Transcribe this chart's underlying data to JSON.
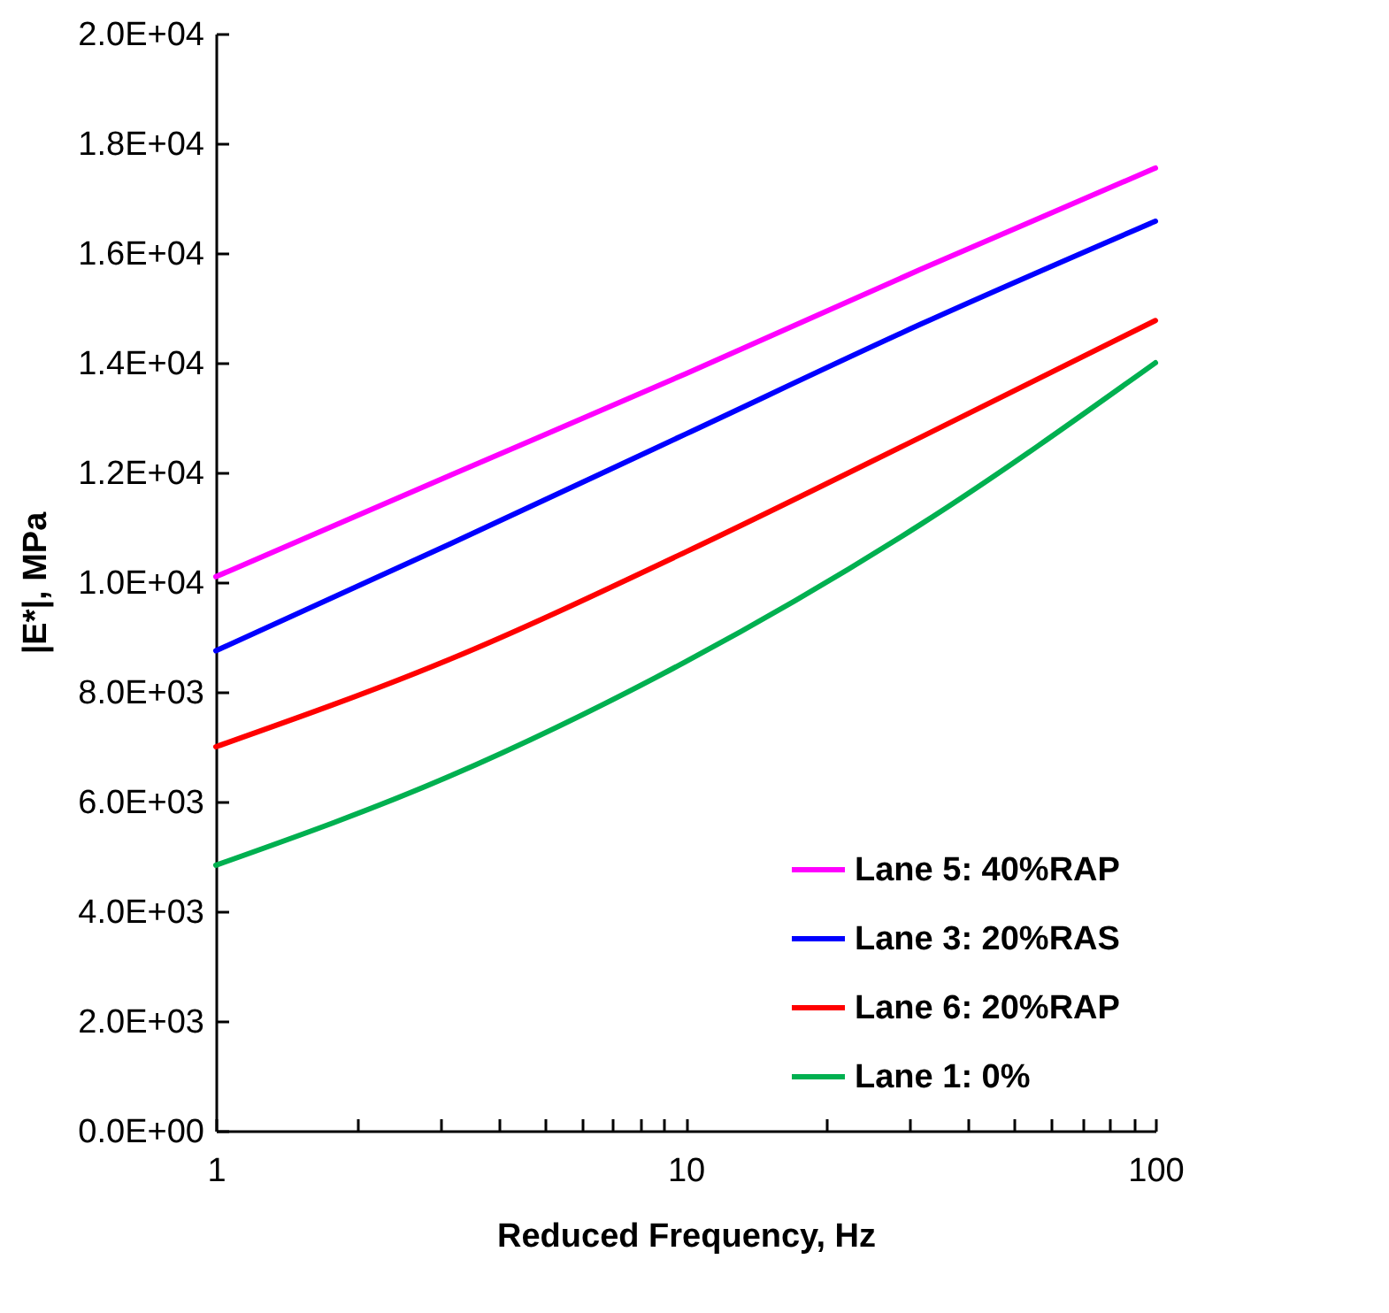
{
  "chart_data": {
    "type": "line",
    "xlabel": "Reduced Frequency, Hz",
    "ylabel": "|E*|, MPa",
    "log": "x",
    "x": [
      1,
      3.16,
      10,
      31.6,
      100
    ],
    "series": [
      {
        "name": "Lane 5: 40%RAP",
        "color": "#ff00ff",
        "values": [
          10100,
          11950,
          13800,
          15700,
          17550
        ]
      },
      {
        "name": "Lane 3: 20%RAS",
        "color": "#0000ff",
        "values": [
          8750,
          10700,
          12700,
          14700,
          16580
        ]
      },
      {
        "name": "Lane 6: 20%RAP",
        "color": "#ff0000",
        "values": [
          7000,
          8600,
          10550,
          12640,
          14770
        ]
      },
      {
        "name": "Lane 1: 0%",
        "color": "#00b050",
        "values": [
          4840,
          6470,
          8550,
          11050,
          14000
        ]
      }
    ],
    "xlim": [
      1,
      100
    ],
    "xticks": [
      1,
      {
        "value": 2,
        "label": null
      },
      {
        "value": 3,
        "label": null
      },
      {
        "value": 4,
        "label": null
      },
      {
        "value": 5,
        "label": null
      },
      {
        "value": 6,
        "label": null
      },
      {
        "value": 7,
        "label": null
      },
      {
        "value": 8,
        "label": null
      },
      {
        "value": 9,
        "label": null
      },
      10,
      {
        "value": 20,
        "label": null
      },
      {
        "value": 30,
        "label": null
      },
      {
        "value": 40,
        "label": null
      },
      {
        "value": 50,
        "label": null
      },
      {
        "value": 60,
        "label": null
      },
      {
        "value": 70,
        "label": null
      },
      {
        "value": 80,
        "label": null
      },
      {
        "value": 90,
        "label": null
      },
      100
    ],
    "ylim": [
      0,
      20000
    ],
    "yticks": [
      {
        "value": 0,
        "label": "0.0E+00"
      },
      {
        "value": 2000,
        "label": "2.0E+03"
      },
      {
        "value": 4000,
        "label": "4.0E+03"
      },
      {
        "value": 6000,
        "label": "6.0E+03"
      },
      {
        "value": 8000,
        "label": "8.0E+03"
      },
      {
        "value": 10000,
        "label": "1.0E+04"
      },
      {
        "value": 12000,
        "label": "1.2E+04"
      },
      {
        "value": 14000,
        "label": "1.4E+04"
      },
      {
        "value": 16000,
        "label": "1.6E+04"
      },
      {
        "value": 18000,
        "label": "1.8E+04"
      },
      {
        "value": 20000,
        "label": "2.0E+04"
      }
    ],
    "grid": false,
    "legend": "bottom right",
    "marker": "none",
    "line_style": "solid"
  }
}
